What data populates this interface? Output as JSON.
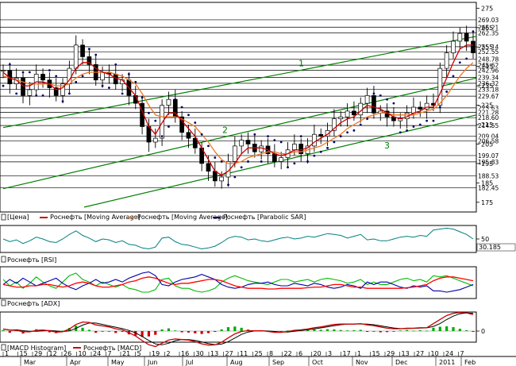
{
  "chart_data": [
    {
      "type": "line",
      "panel": "price",
      "subtype": "candlestick",
      "title": "",
      "ylim": [
        170,
        278
      ],
      "y_ticks": [
        175,
        185,
        195,
        205,
        215,
        225,
        235,
        245,
        255,
        265,
        275
      ],
      "y_levels": [
        269.03,
        265.21,
        262.35,
        255.14,
        252.55,
        248.78,
        245.62,
        242.96,
        239.34,
        236.32,
        233.18,
        229.67,
        223.63,
        221.28,
        218.6,
        214.55,
        209.04,
        206.58,
        199.07,
        195.83,
        188.53,
        182.45
      ],
      "legend": [
        {
          "label": "[Цена]",
          "color": "#000000",
          "kind": "box"
        },
        {
          "label": "Роснефть [Moving Average]",
          "color": "#cc0000",
          "kind": "line"
        },
        {
          "label": "Роснефть [Moving Average]",
          "color": "#ee7722",
          "kind": "line"
        },
        {
          "label": "Роснефть [Parabolic SAR]",
          "color": "#000066",
          "kind": "line"
        }
      ],
      "trend_lines": [
        {
          "label": "1",
          "start": [
            0,
            213.5
          ],
          "end": [
            1,
            260.5
          ]
        },
        {
          "label": "2",
          "start": [
            0,
            182.0
          ],
          "end": [
            1,
            239.0
          ]
        },
        {
          "label": "3",
          "start": [
            0.17,
            172.5
          ],
          "end": [
            1,
            220.0
          ]
        }
      ],
      "colors": {
        "ma_fast": "#cc0000",
        "ma_slow": "#ee7722",
        "sar": "#000066",
        "trend": "#008000",
        "candle": "#000000"
      },
      "series": [
        {
          "name": "Close",
          "values": [
            243,
            236,
            239,
            230,
            233,
            241,
            238,
            234,
            230,
            236,
            244,
            256,
            250,
            246,
            238,
            242,
            241,
            236,
            238,
            230,
            226,
            214,
            206,
            208,
            225,
            228,
            219,
            211,
            208,
            203,
            195,
            191,
            186,
            188,
            196,
            204,
            207,
            205,
            201,
            204,
            200,
            196,
            198,
            202,
            205,
            200,
            204,
            210,
            209,
            212,
            218,
            219,
            222,
            220,
            226,
            230,
            221,
            222,
            219,
            217,
            218,
            221,
            224,
            223,
            226,
            225,
            244,
            252,
            258,
            262,
            258,
            252
          ]
        },
        {
          "name": "Moving Average",
          "values": [
            242,
            239,
            238,
            235,
            235,
            237,
            237,
            236,
            233,
            234,
            238,
            244,
            247,
            247,
            244,
            242,
            241,
            239,
            238,
            234,
            230,
            222,
            214,
            210,
            216,
            221,
            221,
            217,
            213,
            209,
            203,
            197,
            191,
            189,
            191,
            195,
            200,
            203,
            203,
            203,
            202,
            200,
            199,
            200,
            202,
            202,
            203,
            206,
            208,
            210,
            213,
            216,
            218,
            219,
            222,
            225,
            224,
            223,
            221,
            219,
            218,
            219,
            221,
            222,
            224,
            224,
            231,
            239,
            247,
            254,
            256,
            256
          ]
        },
        {
          "name": "Moving Average",
          "values": [
            240,
            239,
            238,
            237,
            236,
            236,
            236,
            236,
            235,
            235,
            236,
            239,
            241,
            242,
            242,
            242,
            242,
            241,
            240,
            238,
            236,
            231,
            225,
            220,
            219,
            219,
            219,
            218,
            216,
            214,
            210,
            206,
            201,
            197,
            195,
            195,
            196,
            198,
            199,
            200,
            201,
            201,
            200,
            200,
            201,
            201,
            202,
            203,
            204,
            206,
            208,
            210,
            213,
            215,
            217,
            219,
            220,
            221,
            221,
            220,
            220,
            220,
            220,
            221,
            222,
            223,
            226,
            230,
            235,
            240,
            244,
            247
          ]
        }
      ]
    },
    {
      "type": "line",
      "panel": "rsi",
      "legend": [
        {
          "label": "Роснефть [RSI]",
          "color": "#000000",
          "kind": "box"
        }
      ],
      "ylim": [
        20,
        80
      ],
      "y_ticks": [
        50
      ],
      "y_levels": [
        30.185
      ],
      "colors": {
        "line": "#008080"
      },
      "series": [
        {
          "name": "RSI",
          "values": [
            50,
            44,
            48,
            40,
            46,
            54,
            50,
            44,
            42,
            50,
            60,
            68,
            58,
            52,
            44,
            50,
            48,
            42,
            46,
            38,
            36,
            30,
            28,
            32,
            52,
            54,
            44,
            38,
            36,
            32,
            28,
            30,
            34,
            42,
            52,
            56,
            54,
            48,
            50,
            46,
            44,
            48,
            52,
            54,
            50,
            52,
            56,
            54,
            58,
            62,
            60,
            58,
            52,
            56,
            60,
            48,
            50,
            46,
            46,
            50,
            54,
            56,
            54,
            58,
            56,
            70,
            72,
            74,
            72,
            66,
            60,
            50
          ]
        }
      ]
    },
    {
      "type": "line",
      "panel": "adx",
      "legend": [
        {
          "label": "Роснефть [ADX]",
          "color": "#000000",
          "kind": "box"
        }
      ],
      "colors": {
        "adx": "#ff0000",
        "plus_di": "#00bb00",
        "minus_di": "#0000aa"
      },
      "series": [
        {
          "name": "ADX",
          "values": [
            22,
            20,
            18,
            18,
            20,
            20,
            22,
            22,
            20,
            18,
            20,
            24,
            26,
            24,
            20,
            18,
            18,
            20,
            22,
            26,
            28,
            32,
            34,
            32,
            28,
            24,
            22,
            24,
            24,
            26,
            28,
            30,
            30,
            28,
            24,
            20,
            18,
            16,
            16,
            16,
            15,
            15,
            16,
            16,
            16,
            16,
            17,
            18,
            18,
            20,
            22,
            22,
            20,
            18,
            18,
            16,
            16,
            16,
            16,
            16,
            16,
            17,
            18,
            20,
            22,
            28,
            32,
            34,
            34,
            32,
            30,
            28
          ]
        },
        {
          "name": "+DI",
          "values": [
            30,
            20,
            26,
            16,
            24,
            34,
            26,
            20,
            16,
            26,
            36,
            40,
            30,
            26,
            20,
            26,
            22,
            18,
            22,
            16,
            14,
            10,
            10,
            14,
            30,
            32,
            20,
            16,
            16,
            12,
            10,
            12,
            16,
            26,
            32,
            36,
            32,
            28,
            26,
            24,
            22,
            26,
            30,
            30,
            26,
            28,
            30,
            26,
            30,
            32,
            30,
            28,
            24,
            26,
            30,
            22,
            26,
            22,
            22,
            26,
            30,
            32,
            28,
            30,
            26,
            36,
            34,
            36,
            32,
            28,
            24,
            20
          ]
        },
        {
          "name": "-DI",
          "values": [
            22,
            30,
            24,
            32,
            26,
            20,
            24,
            28,
            32,
            24,
            18,
            14,
            20,
            24,
            30,
            24,
            26,
            30,
            26,
            32,
            36,
            40,
            42,
            36,
            22,
            20,
            26,
            30,
            32,
            34,
            38,
            34,
            30,
            22,
            18,
            16,
            18,
            22,
            24,
            24,
            26,
            22,
            20,
            20,
            24,
            22,
            20,
            24,
            22,
            18,
            16,
            18,
            22,
            20,
            16,
            26,
            22,
            26,
            26,
            22,
            18,
            16,
            20,
            18,
            20,
            12,
            12,
            10,
            12,
            14,
            18,
            22
          ]
        }
      ]
    },
    {
      "type": "bar",
      "panel": "macd",
      "legend": [
        {
          "label": "[MACD Histogram]",
          "color": "#000000",
          "kind": "box"
        },
        {
          "label": "Роснефть [MACD]",
          "color": "#cc0000",
          "kind": "line"
        }
      ],
      "y_ticks": [
        0
      ],
      "colors": {
        "positive": "#00aa00",
        "negative": "#cc0000",
        "macd": "#cc0000",
        "signal": "#000000"
      },
      "series": [
        {
          "name": "Histogram",
          "values": [
            0.5,
            -0.8,
            0.3,
            -1.2,
            -0.4,
            0.9,
            0.3,
            -0.6,
            -1.0,
            0.2,
            1.5,
            2.6,
            1.6,
            0.6,
            -0.8,
            -0.1,
            -0.3,
            -0.9,
            -0.4,
            -1.6,
            -2.2,
            -2.8,
            -2.6,
            -1.8,
            0.8,
            1.3,
            0.3,
            -0.6,
            -0.7,
            -1.1,
            -1.4,
            -1.0,
            -0.4,
            0.8,
            1.9,
            2.2,
            1.6,
            0.8,
            0.3,
            0.2,
            -0.3,
            -0.5,
            -0.1,
            0.3,
            0.5,
            0.3,
            0.6,
            0.8,
            0.6,
            0.9,
            0.8,
            0.5,
            0.3,
            0.4,
            0.6,
            -0.4,
            -0.2,
            -0.6,
            -0.5,
            -0.1,
            0.3,
            0.5,
            0.2,
            0.4,
            0.2,
            1.6,
            2.1,
            2.3,
            1.9,
            1.1,
            0.4,
            -0.4
          ]
        },
        {
          "name": "MACD",
          "values": [
            1.0,
            0.5,
            0.4,
            -0.3,
            -0.4,
            0.3,
            0.5,
            0.1,
            -0.5,
            -0.3,
            1.0,
            3.2,
            4.4,
            4.2,
            3.0,
            2.5,
            2.0,
            1.1,
            0.6,
            -0.8,
            -2.4,
            -4.6,
            -6.6,
            -7.5,
            -5.9,
            -4.3,
            -3.8,
            -4.1,
            -4.4,
            -5.1,
            -6.2,
            -6.8,
            -6.7,
            -5.4,
            -3.3,
            -1.4,
            -0.2,
            0.2,
            0.1,
            0.2,
            -0.2,
            -0.6,
            -0.6,
            -0.2,
            0.4,
            0.6,
            1.0,
            1.6,
            2.0,
            2.6,
            3.2,
            3.4,
            3.4,
            3.4,
            3.6,
            3.0,
            2.6,
            2.0,
            1.4,
            1.1,
            1.1,
            1.4,
            1.4,
            1.6,
            1.6,
            3.6,
            5.6,
            7.5,
            8.6,
            9.0,
            8.8,
            8.0
          ]
        }
      ]
    }
  ],
  "x_axis": {
    "day_labels": [
      "1",
      "15",
      "29",
      "12",
      "26",
      "10",
      "24",
      "7",
      "21",
      "5",
      "19",
      "2",
      "16",
      "30",
      "13",
      "27",
      "11",
      "25",
      "8",
      "22",
      "6",
      "20",
      "3",
      "17",
      "1",
      "15",
      "29",
      "13",
      "27",
      "10",
      "24",
      "7"
    ],
    "month_labels": [
      "Mar",
      "Apr",
      "May",
      "Jun",
      "Jul",
      "Aug",
      "Sep",
      "Oct",
      "Nov",
      "Dec",
      "2011",
      "Feb"
    ]
  }
}
